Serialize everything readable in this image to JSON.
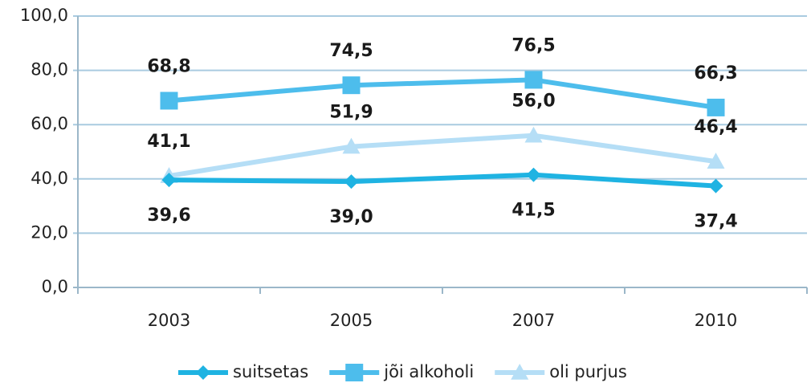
{
  "chart_data": {
    "type": "line",
    "categories": [
      "2003",
      "2005",
      "2007",
      "2010"
    ],
    "series": [
      {
        "name": "suitsetas",
        "color": "#1fb3e2",
        "marker": "diamond",
        "values": [
          39.6,
          39.0,
          41.5,
          37.4
        ],
        "value_labels": [
          "39,6",
          "39,0",
          "41,5",
          "37,4"
        ]
      },
      {
        "name": "jõi alkoholi",
        "color": "#4dbdec",
        "marker": "square",
        "values": [
          68.8,
          74.5,
          76.5,
          66.3
        ],
        "value_labels": [
          "68,8",
          "74,5",
          "76,5",
          "66,3"
        ]
      },
      {
        "name": "oli purjus",
        "color": "#b5def6",
        "marker": "triangle",
        "values": [
          41.1,
          51.9,
          56.0,
          46.4
        ],
        "value_labels": [
          "41,1",
          "51,9",
          "56,0",
          "46,4"
        ]
      }
    ],
    "ylim": [
      0,
      100
    ],
    "yticks": [
      {
        "value": 0,
        "label": "0,0"
      },
      {
        "value": 20,
        "label": "20,0"
      },
      {
        "value": 40,
        "label": "40,0"
      },
      {
        "value": 60,
        "label": "60,0"
      },
      {
        "value": 80,
        "label": "80,0"
      },
      {
        "value": 100,
        "label": "100,0"
      }
    ],
    "grid": true,
    "legend": "bottom"
  }
}
